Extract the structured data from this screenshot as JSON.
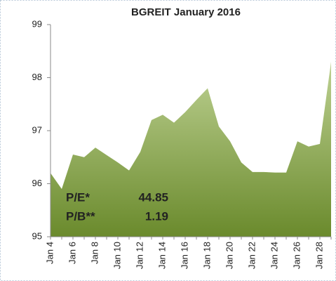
{
  "chart_data": {
    "type": "area",
    "title": "BGREIT January 2016",
    "categories": [
      "Jan 4",
      null,
      "Jan 6",
      null,
      "Jan 8",
      null,
      "Jan 10",
      null,
      "Jan 12",
      null,
      "Jan 14",
      null,
      "Jan 16",
      null,
      "Jan 18",
      null,
      "Jan 20",
      null,
      "Jan 22",
      null,
      "Jan 24",
      null,
      "Jan 26",
      null,
      "Jan 28",
      null
    ],
    "values": [
      96.2,
      95.9,
      96.55,
      96.5,
      96.68,
      96.54,
      96.4,
      96.25,
      96.6,
      97.2,
      97.3,
      97.15,
      97.35,
      97.58,
      97.8,
      97.08,
      96.8,
      96.4,
      96.22,
      96.22,
      96.21,
      96.21,
      96.8,
      96.7,
      96.75,
      98.3
    ],
    "color": "#7a9a3a",
    "ylim": [
      95,
      99
    ],
    "yticks": [
      95,
      96,
      97,
      98,
      99
    ],
    "grid": false,
    "annotations": [
      {
        "label": "P/E*",
        "value": "44.85"
      },
      {
        "label": "P/B**",
        "value": "1.19"
      }
    ]
  }
}
